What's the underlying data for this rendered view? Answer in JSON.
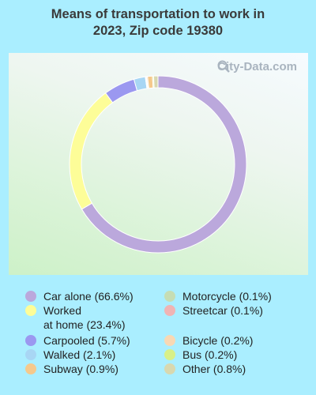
{
  "title": "Means of transportation to work in 2023, Zip code 19380",
  "watermark": "City-Data.com",
  "chart_data": {
    "type": "pie",
    "donut": true,
    "title": "Means of transportation to work in 2023, Zip code 19380",
    "slices": [
      {
        "label": "Car alone (66.6%)",
        "value": 66.6,
        "color": "#bba8dc"
      },
      {
        "label": "Worked\nat home (23.4%)",
        "value": 23.4,
        "color": "#fdfd98"
      },
      {
        "label": "Carpooled (5.7%)",
        "value": 5.7,
        "color": "#9b98f0"
      },
      {
        "label": "Walked (2.1%)",
        "value": 2.1,
        "color": "#a8d6f4"
      },
      {
        "label": "Subway (0.9%)",
        "value": 0.9,
        "color": "#f5c98c"
      },
      {
        "label": "Motorcycle (0.1%)",
        "value": 0.1,
        "color": "#c6ddb4"
      },
      {
        "label": "Streetcar (0.1%)",
        "value": 0.1,
        "color": "#f0b4b4"
      },
      {
        "label": "Bicycle (0.2%)",
        "value": 0.2,
        "color": "#f8d8b4"
      },
      {
        "label": "Bus (0.2%)",
        "value": 0.2,
        "color": "#d8f088"
      },
      {
        "label": "Other (0.8%)",
        "value": 0.8,
        "color": "#d8d8b0"
      }
    ],
    "legend_placement": "bottom"
  }
}
